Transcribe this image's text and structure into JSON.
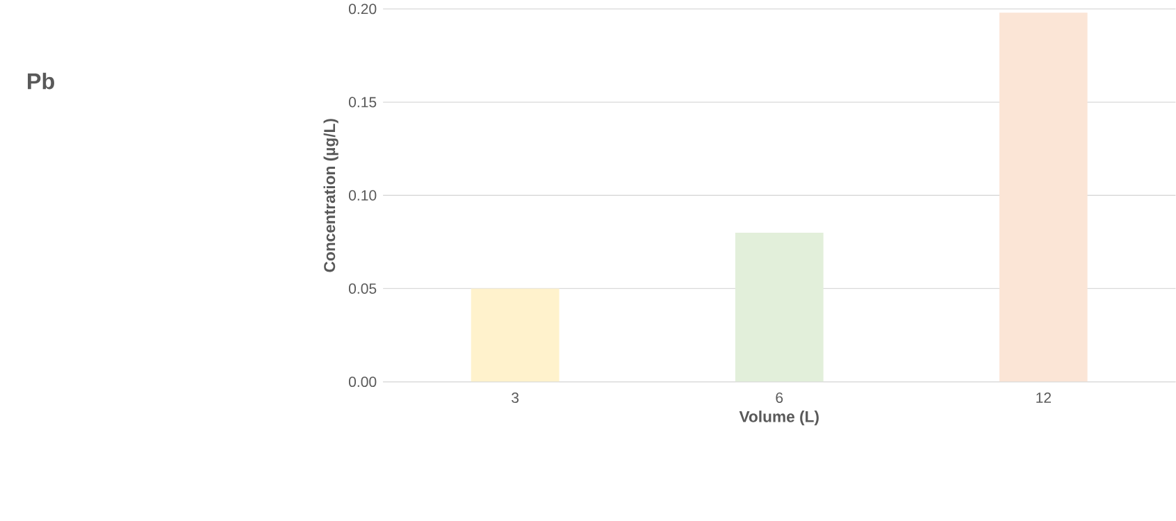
{
  "chart_data": {
    "type": "bar",
    "title": "Pb",
    "xlabel": "Volume (L)",
    "ylabel": "Concentration (µg/L)",
    "categories": [
      "3",
      "6",
      "12"
    ],
    "values": [
      0.05,
      0.08,
      0.198
    ],
    "colors": [
      "#fff2cc",
      "#e2efda",
      "#fbe5d6"
    ],
    "ylim": [
      0,
      0.2
    ],
    "yticks": [
      {
        "value": 0,
        "label": "0.00"
      },
      {
        "value": 0.05,
        "label": "0.05"
      },
      {
        "value": 0.1,
        "label": "0.10"
      },
      {
        "value": 0.15,
        "label": "0.15"
      },
      {
        "value": 0.2,
        "label": "0.20"
      }
    ],
    "grid": "y"
  }
}
